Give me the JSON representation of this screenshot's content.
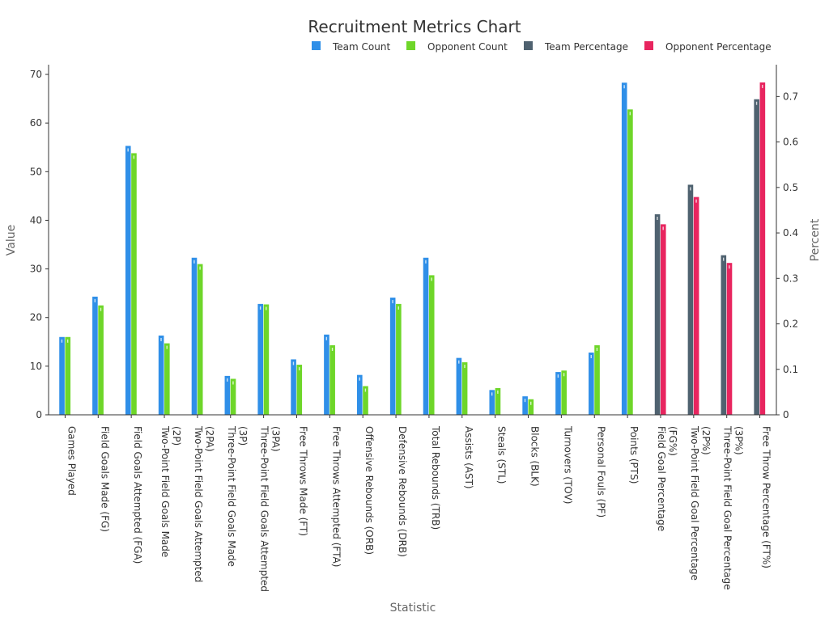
{
  "chart_data": {
    "type": "bar",
    "title": "Recruitment Metrics Chart",
    "xlabel": "Statistic",
    "ylabel_left": "Value",
    "ylabel_right": "Percent",
    "ylim_left": [
      0,
      72
    ],
    "ylim_right": [
      0,
      0.77
    ],
    "yticks_left": [
      0,
      10,
      20,
      30,
      40,
      50,
      60,
      70
    ],
    "yticks_right": [
      0,
      0.1,
      0.2,
      0.3,
      0.4,
      0.5,
      0.6,
      0.7
    ],
    "grid": false,
    "legend_position": "top-right",
    "categories": [
      "Games Played",
      "Field Goals Made (FG)",
      "Field Goals Attempted (FGA)",
      "Two-Point Field Goals Made (2P)",
      "Two-Point Field Goals Attempted (2PA)",
      "Three-Point Field Goals Made (3P)",
      "Three-Point Field Goals Attempted (3PA)",
      "Free Throws Made (FT)",
      "Free Throws Attempted (FTA)",
      "Offensive Rebounds (ORB)",
      "Defensive Rebounds (DRB)",
      "Total Rebounds (TRB)",
      "Assists (AST)",
      "Steals (STL)",
      "Blocks (BLK)",
      "Turnovers (TOV)",
      "Personal Fouls (PF)",
      "Points (PTS)",
      "Field Goal Percentage (FG%)",
      "Two-Point Field Goal Percentage (2P%)",
      "Three-Point Field Goal Percentage (3P%)",
      "Free Throw Percentage (FT%)"
    ],
    "category_lines": [
      [
        "Games Played"
      ],
      [
        "Field Goals Made (FG)"
      ],
      [
        "Field Goals Attempted (FGA)"
      ],
      [
        "Two-Point Field Goals Made",
        "(2P)"
      ],
      [
        "Two-Point Field Goals Attempted",
        "(2PA)"
      ],
      [
        "Three-Point Field Goals Made",
        "(3P)"
      ],
      [
        "Three-Point Field Goals Attempted",
        "(3PA)"
      ],
      [
        "Free Throws Made (FT)"
      ],
      [
        "Free Throws Attempted (FTA)"
      ],
      [
        "Offensive Rebounds (ORB)"
      ],
      [
        "Defensive Rebounds (DRB)"
      ],
      [
        "Total Rebounds (TRB)"
      ],
      [
        "Assists (AST)"
      ],
      [
        "Steals (STL)"
      ],
      [
        "Blocks (BLK)"
      ],
      [
        "Turnovers (TOV)"
      ],
      [
        "Personal Fouls (PF)"
      ],
      [
        "Points (PTS)"
      ],
      [
        "Field Goal Percentage",
        "(FG%)"
      ],
      [
        "Two-Point Field Goal Percentage",
        "(2P%)"
      ],
      [
        "Three-Point Field Goal Percentage",
        "(3P%)"
      ],
      [
        "Free Throw Percentage (FT%)"
      ]
    ],
    "series": [
      {
        "name": "Team Count",
        "axis": "left",
        "color": "#2f8fe8",
        "values": [
          16,
          24.3,
          55.3,
          16.3,
          32.3,
          8,
          22.8,
          11.4,
          16.5,
          8.2,
          24.1,
          32.3,
          11.7,
          5.1,
          3.8,
          8.8,
          12.8,
          68.3,
          null,
          null,
          null,
          null
        ]
      },
      {
        "name": "Opponent Count",
        "axis": "left",
        "color": "#6ed629",
        "values": [
          16,
          22.5,
          53.8,
          14.7,
          31,
          7.4,
          22.7,
          10.3,
          14.3,
          5.9,
          22.8,
          28.7,
          10.8,
          5.5,
          3.2,
          9.1,
          14.3,
          62.8,
          null,
          null,
          null,
          null
        ]
      },
      {
        "name": "Team Percentage",
        "axis": "right",
        "color": "#4f6270",
        "values": [
          null,
          null,
          null,
          null,
          null,
          null,
          null,
          null,
          null,
          null,
          null,
          null,
          null,
          null,
          null,
          null,
          null,
          null,
          0.441,
          0.506,
          0.351,
          0.694
        ]
      },
      {
        "name": "Opponent Percentage",
        "axis": "right",
        "color": "#e8255f",
        "values": [
          null,
          null,
          null,
          null,
          null,
          null,
          null,
          null,
          null,
          null,
          null,
          null,
          null,
          null,
          null,
          null,
          null,
          null,
          0.419,
          0.479,
          0.334,
          0.731
        ]
      }
    ]
  }
}
